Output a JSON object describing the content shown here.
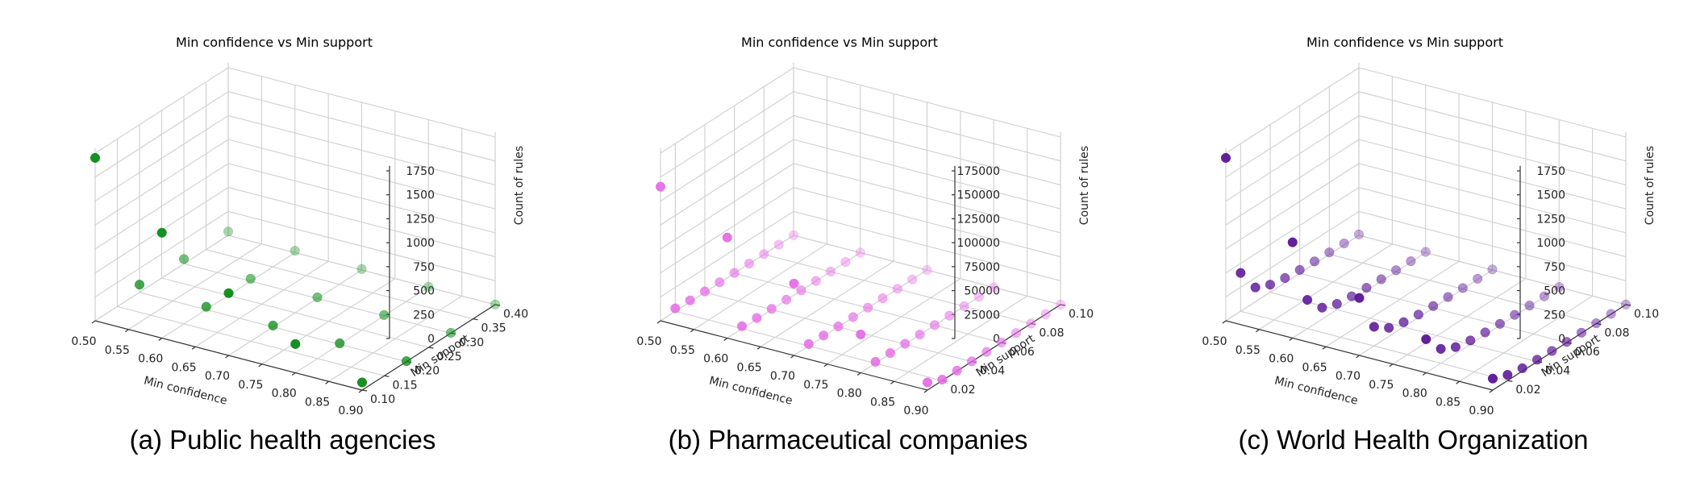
{
  "figure": {
    "captions": [
      "(a) Public health agencies",
      "(b) Pharmaceutical companies",
      "(c) World Health Organization"
    ]
  },
  "chart_data": [
    {
      "type": "scatter",
      "projection": "3d",
      "title": "Min confidence vs Min support",
      "xlabel": "Min confidence",
      "ylabel": "Min support",
      "zlabel": "Count of rules",
      "xlim": [
        0.5,
        0.9
      ],
      "ylim": [
        0.1,
        0.4
      ],
      "zlim": [
        0,
        1750
      ],
      "xticks": [
        "0.50",
        "0.55",
        "0.60",
        "0.65",
        "0.70",
        "0.75",
        "0.80",
        "0.85",
        "0.90"
      ],
      "yticks": [
        "0.10",
        "0.15",
        "0.20",
        "0.25",
        "0.30",
        "0.35",
        "0.40"
      ],
      "zticks": [
        "0",
        "250",
        "500",
        "750",
        "1000",
        "1250",
        "1500",
        "1750"
      ],
      "color": "#0a8a14",
      "grid": true,
      "points": [
        {
          "x": 0.5,
          "y": 0.1,
          "z": 1700
        },
        {
          "x": 0.5,
          "y": 0.2,
          "z": 80
        },
        {
          "x": 0.5,
          "y": 0.3,
          "z": 50
        },
        {
          "x": 0.5,
          "y": 0.4,
          "z": 40
        },
        {
          "x": 0.6,
          "y": 0.1,
          "z": 1100
        },
        {
          "x": 0.6,
          "y": 0.2,
          "z": 30
        },
        {
          "x": 0.6,
          "y": 0.3,
          "z": 25
        },
        {
          "x": 0.6,
          "y": 0.4,
          "z": 20
        },
        {
          "x": 0.7,
          "y": 0.1,
          "z": 650
        },
        {
          "x": 0.7,
          "y": 0.2,
          "z": 15
        },
        {
          "x": 0.7,
          "y": 0.3,
          "z": 12
        },
        {
          "x": 0.7,
          "y": 0.4,
          "z": 10
        },
        {
          "x": 0.8,
          "y": 0.1,
          "z": 300
        },
        {
          "x": 0.8,
          "y": 0.2,
          "z": 10
        },
        {
          "x": 0.8,
          "y": 0.3,
          "z": 8
        },
        {
          "x": 0.8,
          "y": 0.4,
          "z": 6
        },
        {
          "x": 0.9,
          "y": 0.1,
          "z": 80
        },
        {
          "x": 0.9,
          "y": 0.2,
          "z": 5
        },
        {
          "x": 0.9,
          "y": 0.3,
          "z": 3
        },
        {
          "x": 0.9,
          "y": 0.4,
          "z": 2
        }
      ]
    },
    {
      "type": "scatter",
      "projection": "3d",
      "title": "Min confidence vs Min support",
      "xlabel": "Min confidence",
      "ylabel": "Min support",
      "zlabel": "Count of rules",
      "xlim": [
        0.5,
        0.9
      ],
      "ylim": [
        0.01,
        0.1
      ],
      "zlim": [
        0,
        175000
      ],
      "xticks": [
        "0.50",
        "0.55",
        "0.60",
        "0.65",
        "0.70",
        "0.75",
        "0.80",
        "0.85",
        "0.90"
      ],
      "yticks": [
        "0.02",
        "0.04",
        "0.06",
        "0.08",
        "0.10"
      ],
      "zticks": [
        "0",
        "25000",
        "50000",
        "75000",
        "100000",
        "125000",
        "150000",
        "175000"
      ],
      "color": "#e56ee5",
      "grid": true,
      "points": [
        {
          "x": 0.5,
          "y": 0.01,
          "z": 140000
        },
        {
          "x": 0.5,
          "y": 0.02,
          "z": 3000
        },
        {
          "x": 0.5,
          "y": 0.03,
          "z": 1500
        },
        {
          "x": 0.5,
          "y": 0.04,
          "z": 900
        },
        {
          "x": 0.5,
          "y": 0.05,
          "z": 600
        },
        {
          "x": 0.5,
          "y": 0.06,
          "z": 400
        },
        {
          "x": 0.5,
          "y": 0.07,
          "z": 300
        },
        {
          "x": 0.5,
          "y": 0.08,
          "z": 200
        },
        {
          "x": 0.5,
          "y": 0.09,
          "z": 150
        },
        {
          "x": 0.5,
          "y": 0.1,
          "z": 100
        },
        {
          "x": 0.6,
          "y": 0.01,
          "z": 105000
        },
        {
          "x": 0.6,
          "y": 0.02,
          "z": 2500
        },
        {
          "x": 0.6,
          "y": 0.03,
          "z": 1200
        },
        {
          "x": 0.6,
          "y": 0.04,
          "z": 800
        },
        {
          "x": 0.6,
          "y": 0.05,
          "z": 500
        },
        {
          "x": 0.6,
          "y": 0.06,
          "z": 350
        },
        {
          "x": 0.6,
          "y": 0.07,
          "z": 250
        },
        {
          "x": 0.6,
          "y": 0.08,
          "z": 180
        },
        {
          "x": 0.6,
          "y": 0.09,
          "z": 120
        },
        {
          "x": 0.6,
          "y": 0.1,
          "z": 80
        },
        {
          "x": 0.7,
          "y": 0.01,
          "z": 75000
        },
        {
          "x": 0.7,
          "y": 0.02,
          "z": 2000
        },
        {
          "x": 0.7,
          "y": 0.03,
          "z": 1000
        },
        {
          "x": 0.7,
          "y": 0.04,
          "z": 600
        },
        {
          "x": 0.7,
          "y": 0.05,
          "z": 400
        },
        {
          "x": 0.7,
          "y": 0.06,
          "z": 300
        },
        {
          "x": 0.7,
          "y": 0.07,
          "z": 200
        },
        {
          "x": 0.7,
          "y": 0.08,
          "z": 150
        },
        {
          "x": 0.7,
          "y": 0.09,
          "z": 100
        },
        {
          "x": 0.7,
          "y": 0.1,
          "z": 60
        },
        {
          "x": 0.8,
          "y": 0.01,
          "z": 40000
        },
        {
          "x": 0.8,
          "y": 0.02,
          "z": 1500
        },
        {
          "x": 0.8,
          "y": 0.03,
          "z": 800
        },
        {
          "x": 0.8,
          "y": 0.04,
          "z": 500
        },
        {
          "x": 0.8,
          "y": 0.05,
          "z": 300
        },
        {
          "x": 0.8,
          "y": 0.06,
          "z": 200
        },
        {
          "x": 0.8,
          "y": 0.07,
          "z": 150
        },
        {
          "x": 0.8,
          "y": 0.08,
          "z": 100
        },
        {
          "x": 0.8,
          "y": 0.09,
          "z": 80
        },
        {
          "x": 0.8,
          "y": 0.1,
          "z": 50
        },
        {
          "x": 0.9,
          "y": 0.01,
          "z": 8000
        },
        {
          "x": 0.9,
          "y": 0.02,
          "z": 1000
        },
        {
          "x": 0.9,
          "y": 0.03,
          "z": 500
        },
        {
          "x": 0.9,
          "y": 0.04,
          "z": 300
        },
        {
          "x": 0.9,
          "y": 0.05,
          "z": 200
        },
        {
          "x": 0.9,
          "y": 0.06,
          "z": 150
        },
        {
          "x": 0.9,
          "y": 0.07,
          "z": 100
        },
        {
          "x": 0.9,
          "y": 0.08,
          "z": 80
        },
        {
          "x": 0.9,
          "y": 0.09,
          "z": 50
        },
        {
          "x": 0.9,
          "y": 0.1,
          "z": 30
        }
      ]
    },
    {
      "type": "scatter",
      "projection": "3d",
      "title": "Min confidence vs Min support",
      "xlabel": "Min confidence",
      "ylabel": "Min support",
      "zlabel": "Count of rules",
      "xlim": [
        0.5,
        0.9
      ],
      "ylim": [
        0.01,
        0.1
      ],
      "zlim": [
        0,
        1750
      ],
      "xticks": [
        "0.50",
        "0.55",
        "0.60",
        "0.65",
        "0.70",
        "0.75",
        "0.80",
        "0.85",
        "0.90"
      ],
      "yticks": [
        "0.02",
        "0.04",
        "0.06",
        "0.08",
        "0.10"
      ],
      "zticks": [
        "0",
        "250",
        "500",
        "750",
        "1000",
        "1250",
        "1500",
        "1750"
      ],
      "color": "#5a1496",
      "grid": true,
      "points": [
        {
          "x": 0.5,
          "y": 0.01,
          "z": 1700
        },
        {
          "x": 0.5,
          "y": 0.02,
          "z": 400
        },
        {
          "x": 0.5,
          "y": 0.03,
          "z": 150
        },
        {
          "x": 0.5,
          "y": 0.04,
          "z": 80
        },
        {
          "x": 0.5,
          "y": 0.05,
          "z": 50
        },
        {
          "x": 0.5,
          "y": 0.06,
          "z": 35
        },
        {
          "x": 0.5,
          "y": 0.07,
          "z": 25
        },
        {
          "x": 0.5,
          "y": 0.08,
          "z": 20
        },
        {
          "x": 0.5,
          "y": 0.09,
          "z": 15
        },
        {
          "x": 0.5,
          "y": 0.1,
          "z": 10
        },
        {
          "x": 0.6,
          "y": 0.01,
          "z": 1000
        },
        {
          "x": 0.6,
          "y": 0.02,
          "z": 300
        },
        {
          "x": 0.6,
          "y": 0.03,
          "z": 120
        },
        {
          "x": 0.6,
          "y": 0.04,
          "z": 60
        },
        {
          "x": 0.6,
          "y": 0.05,
          "z": 40
        },
        {
          "x": 0.6,
          "y": 0.06,
          "z": 30
        },
        {
          "x": 0.6,
          "y": 0.07,
          "z": 20
        },
        {
          "x": 0.6,
          "y": 0.08,
          "z": 15
        },
        {
          "x": 0.6,
          "y": 0.09,
          "z": 10
        },
        {
          "x": 0.6,
          "y": 0.1,
          "z": 8
        },
        {
          "x": 0.7,
          "y": 0.01,
          "z": 600
        },
        {
          "x": 0.7,
          "y": 0.02,
          "z": 200
        },
        {
          "x": 0.7,
          "y": 0.03,
          "z": 90
        },
        {
          "x": 0.7,
          "y": 0.04,
          "z": 50
        },
        {
          "x": 0.7,
          "y": 0.05,
          "z": 30
        },
        {
          "x": 0.7,
          "y": 0.06,
          "z": 20
        },
        {
          "x": 0.7,
          "y": 0.07,
          "z": 15
        },
        {
          "x": 0.7,
          "y": 0.08,
          "z": 10
        },
        {
          "x": 0.7,
          "y": 0.09,
          "z": 8
        },
        {
          "x": 0.7,
          "y": 0.1,
          "z": 6
        },
        {
          "x": 0.8,
          "y": 0.01,
          "z": 350
        },
        {
          "x": 0.8,
          "y": 0.02,
          "z": 150
        },
        {
          "x": 0.8,
          "y": 0.03,
          "z": 70
        },
        {
          "x": 0.8,
          "y": 0.04,
          "z": 40
        },
        {
          "x": 0.8,
          "y": 0.05,
          "z": 25
        },
        {
          "x": 0.8,
          "y": 0.06,
          "z": 15
        },
        {
          "x": 0.8,
          "y": 0.07,
          "z": 10
        },
        {
          "x": 0.8,
          "y": 0.08,
          "z": 8
        },
        {
          "x": 0.8,
          "y": 0.09,
          "z": 5
        },
        {
          "x": 0.8,
          "y": 0.1,
          "z": 4
        },
        {
          "x": 0.9,
          "y": 0.01,
          "z": 120
        },
        {
          "x": 0.9,
          "y": 0.02,
          "z": 60
        },
        {
          "x": 0.9,
          "y": 0.03,
          "z": 30
        },
        {
          "x": 0.9,
          "y": 0.04,
          "z": 20
        },
        {
          "x": 0.9,
          "y": 0.05,
          "z": 12
        },
        {
          "x": 0.9,
          "y": 0.06,
          "z": 8
        },
        {
          "x": 0.9,
          "y": 0.07,
          "z": 5
        },
        {
          "x": 0.9,
          "y": 0.08,
          "z": 4
        },
        {
          "x": 0.9,
          "y": 0.09,
          "z": 3
        },
        {
          "x": 0.9,
          "y": 0.1,
          "z": 2
        }
      ]
    }
  ]
}
